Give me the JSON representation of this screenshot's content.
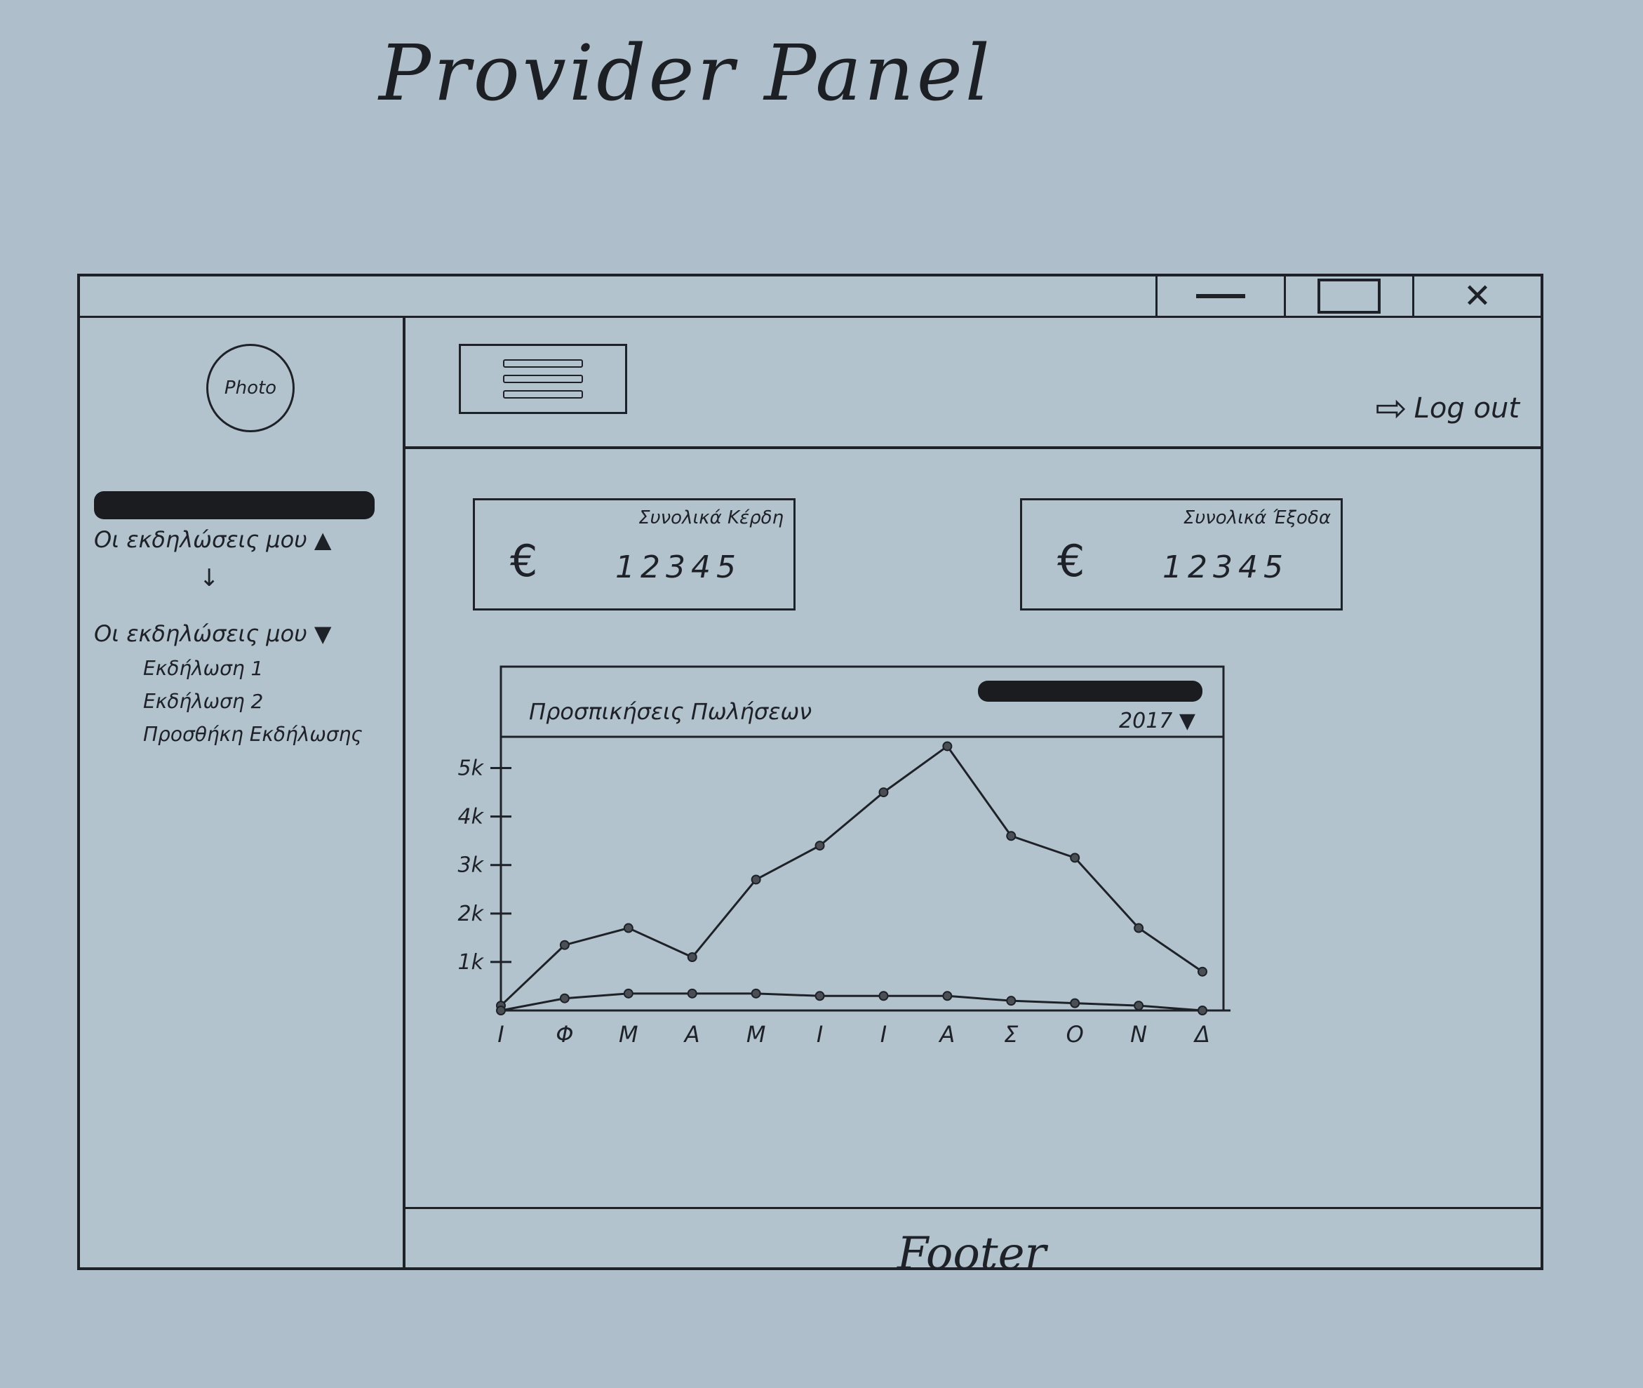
{
  "page_title": "Provider Panel",
  "window": {
    "controls": {
      "minimize": "—",
      "close": "✕"
    }
  },
  "sidebar": {
    "photo_label": "Photo",
    "menu_collapsed_label": "Οι εκδηλώσεις μου ▲",
    "menu_expanded_label": "Οι εκδηλώσεις μου ▼",
    "expand_arrow": "↓",
    "items": [
      {
        "label": "Εκδήλωση 1"
      },
      {
        "label": "Εκδήλωση 2"
      },
      {
        "label": "Προσθήκη Εκδήλωσης"
      }
    ]
  },
  "header": {
    "logout_label": "Log out",
    "logout_icon": "⇨"
  },
  "cards": [
    {
      "label": "Συνολικά Κέρδη",
      "currency": "€",
      "value": "12345"
    },
    {
      "label": "Συνολικά Έξοδα",
      "currency": "€",
      "value": "12345"
    }
  ],
  "chart": {
    "title": "Προσπικήσεις Πωλήσεων",
    "year_select": "2017 ▼"
  },
  "footer": {
    "text": "Footer"
  },
  "chart_data": {
    "type": "line",
    "x": [
      "Ι",
      "Φ",
      "Μ",
      "Α",
      "Μ",
      "Ι",
      "Ι",
      "Α",
      "Σ",
      "Ο",
      "Ν",
      "Δ"
    ],
    "yticks": [
      "1k",
      "2k",
      "3k",
      "4k",
      "5k"
    ],
    "ylim": [
      0,
      5500
    ],
    "series": [
      {
        "values": [
          100,
          1350,
          1700,
          1100,
          2700,
          3400,
          4500,
          5450,
          3600,
          3150,
          1700,
          800
        ]
      },
      {
        "values": [
          0,
          250,
          350,
          350,
          350,
          300,
          300,
          300,
          200,
          150,
          100,
          0
        ]
      }
    ],
    "grid": false
  }
}
